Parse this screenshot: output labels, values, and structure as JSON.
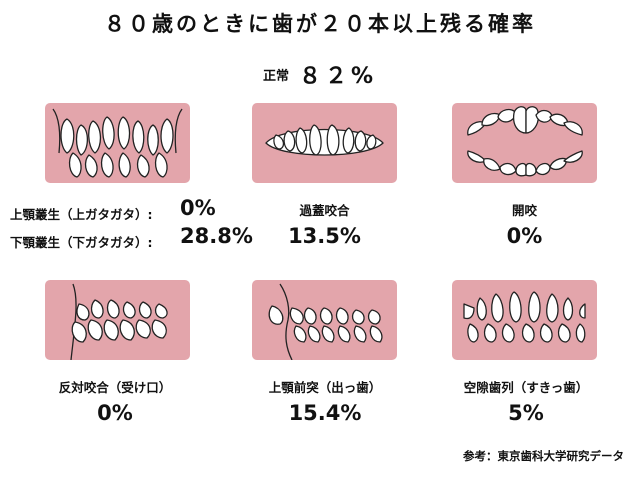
{
  "title": "８０歳のときに歯が２０本以上残る確率",
  "normal": {
    "label": "正常",
    "value": "８２%"
  },
  "items": [
    {
      "label": "上顎叢生（上ガタガタ）:",
      "value": "0%"
    },
    {
      "label": "下顎叢生（下ガタガタ）:",
      "value": "28.8%"
    },
    {
      "label": "過蓋咬合",
      "value": "13.5%"
    },
    {
      "label": "開咬",
      "value": "0%"
    },
    {
      "label": "反対咬合（受け口）",
      "value": "0%"
    },
    {
      "label": "上顎前突（出っ歯）",
      "value": "15.4%"
    },
    {
      "label": "空隙歯列（すきっ歯）",
      "value": "5%"
    }
  ],
  "source": "参考：東京歯科大学研究データ",
  "colors": {
    "card": "#e3a5ab",
    "tooth": "#ffffff",
    "outline": "#222222"
  }
}
